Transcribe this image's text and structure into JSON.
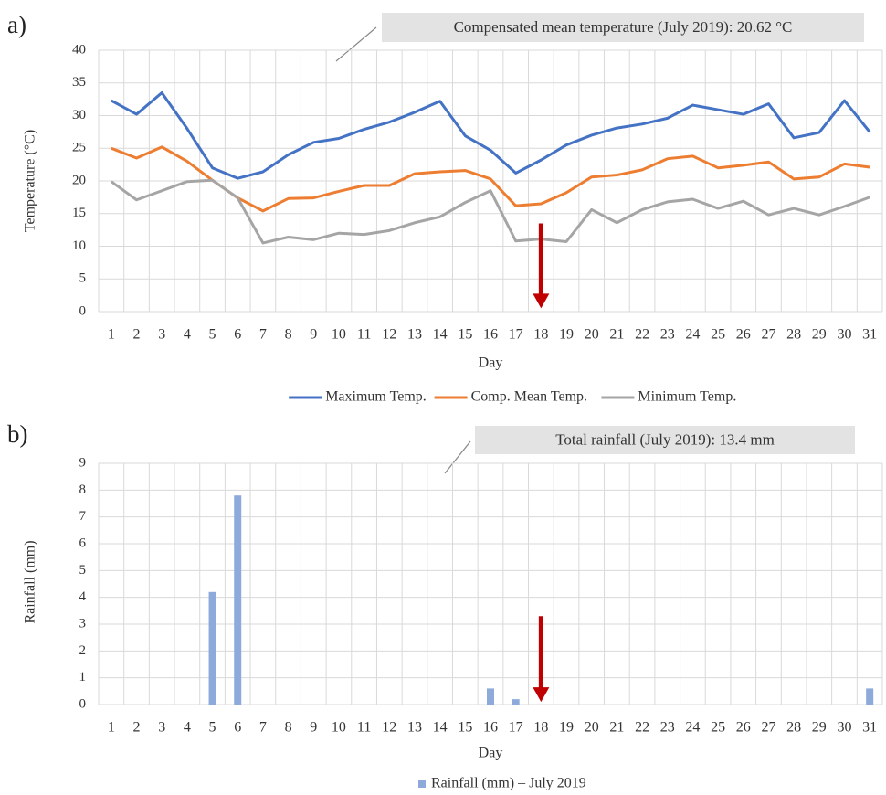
{
  "chart_data": [
    {
      "type": "line",
      "panel_label": "a)",
      "annotation": "Compensated mean temperature (July 2019): 20.62 °C",
      "x_label": "Day",
      "y_label": "Temperature (°C)",
      "categories": [
        1,
        2,
        3,
        4,
        5,
        6,
        7,
        8,
        9,
        10,
        11,
        12,
        13,
        14,
        15,
        16,
        17,
        18,
        19,
        20,
        21,
        22,
        23,
        24,
        25,
        26,
        27,
        28,
        29,
        30,
        31
      ],
      "series": [
        {
          "name": "Maximum Temp.",
          "color": "#4472c4",
          "values": [
            32.3,
            30.2,
            33.5,
            28,
            22,
            20.4,
            21.4,
            24,
            25.9,
            26.5,
            27.9,
            29,
            30.5,
            32.2,
            26.9,
            24.7,
            21.2,
            23.2,
            25.5,
            27,
            28.1,
            28.7,
            29.6,
            31.6,
            30.9,
            30.2,
            31.8,
            26.6,
            27.4,
            32.3,
            27.5
          ]
        },
        {
          "name": "Comp. Mean Temp.",
          "color": "#ed7d31",
          "values": [
            25,
            23.5,
            25.2,
            23,
            20.1,
            17.4,
            15.4,
            17.3,
            17.4,
            18.4,
            19.3,
            19.3,
            21.1,
            21.4,
            21.6,
            20.3,
            16.2,
            16.5,
            18.2,
            20.6,
            20.9,
            21.7,
            23.4,
            23.8,
            22,
            22.4,
            22.9,
            20.3,
            20.6,
            22.6,
            22.1
          ]
        },
        {
          "name": "Minimum Temp.",
          "color": "#a5a5a5",
          "values": [
            19.9,
            17.1,
            18.5,
            19.9,
            20.1,
            17.4,
            10.5,
            11.4,
            11,
            12,
            11.8,
            12.4,
            13.6,
            14.5,
            16.7,
            18.5,
            10.8,
            11.1,
            10.7,
            15.6,
            13.6,
            15.6,
            16.8,
            17.2,
            15.8,
            16.9,
            14.8,
            15.8,
            14.8,
            16.1,
            17.5
          ]
        }
      ],
      "ylim": [
        0,
        40
      ],
      "yticks": [
        0,
        5,
        10,
        15,
        20,
        25,
        30,
        35,
        40
      ],
      "grid": true,
      "arrow": {
        "x": 18,
        "from": 13.5,
        "to": 0.5,
        "color": "#c00000"
      }
    },
    {
      "type": "bar",
      "panel_label": "b)",
      "annotation": "Total rainfall (July 2019): 13.4 mm",
      "x_label": "Day",
      "y_label": "Rainfall (mm)",
      "categories": [
        1,
        2,
        3,
        4,
        5,
        6,
        7,
        8,
        9,
        10,
        11,
        12,
        13,
        14,
        15,
        16,
        17,
        18,
        19,
        20,
        21,
        22,
        23,
        24,
        25,
        26,
        27,
        28,
        29,
        30,
        31
      ],
      "series": [
        {
          "name": "Rainfall (mm) – July 2019",
          "color": "#8eaadb",
          "values": [
            0,
            0,
            0,
            0,
            4.2,
            7.8,
            0,
            0,
            0,
            0,
            0,
            0,
            0,
            0,
            0,
            0.6,
            0.2,
            0,
            0,
            0,
            0,
            0,
            0,
            0,
            0,
            0,
            0,
            0,
            0,
            0,
            0.6
          ]
        }
      ],
      "ylim": [
        0,
        9
      ],
      "yticks": [
        0,
        1,
        2,
        3,
        4,
        5,
        6,
        7,
        8,
        9
      ],
      "grid": true,
      "arrow": {
        "x": 18,
        "from": 3.3,
        "to": 0.1,
        "color": "#c00000"
      }
    }
  ]
}
